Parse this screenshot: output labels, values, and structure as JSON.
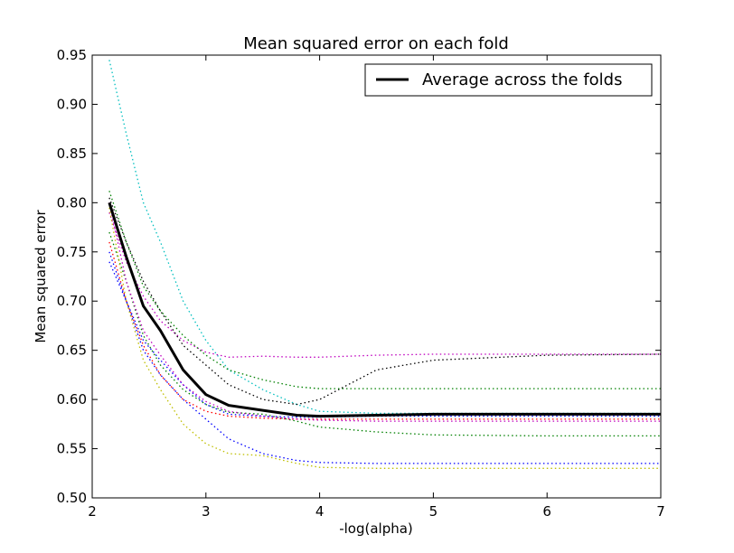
{
  "chart_data": {
    "type": "line",
    "title": "Mean squared error on each fold",
    "xlabel": "-log(alpha)",
    "ylabel": "Mean squared error",
    "xlim": [
      2,
      7
    ],
    "ylim": [
      0.5,
      0.95
    ],
    "x_ticks": [
      "2",
      "3",
      "4",
      "5",
      "6",
      "7"
    ],
    "y_ticks": [
      "0.50",
      "0.55",
      "0.60",
      "0.65",
      "0.70",
      "0.75",
      "0.80",
      "0.85",
      "0.90",
      "0.95"
    ],
    "grid": false,
    "legend": {
      "position": "top-right",
      "entries": [
        "Average across the folds"
      ]
    },
    "x": [
      2.15,
      2.3,
      2.45,
      2.6,
      2.8,
      3.0,
      3.2,
      3.5,
      3.8,
      4.0,
      4.5,
      5.0,
      6.0,
      7.0
    ],
    "series": [
      {
        "color": "#00bfbf",
        "style": "dotted",
        "values": [
          0.945,
          0.87,
          0.8,
          0.76,
          0.7,
          0.66,
          0.63,
          0.61,
          0.595,
          0.588,
          0.586,
          0.586,
          0.586,
          0.586
        ]
      },
      {
        "color": "#bf00bf",
        "style": "dotted",
        "values": [
          0.79,
          0.74,
          0.705,
          0.68,
          0.66,
          0.648,
          0.643,
          0.644,
          0.643,
          0.643,
          0.645,
          0.646,
          0.646,
          0.646
        ]
      },
      {
        "color": "#000000",
        "style": "dotted",
        "values": [
          0.805,
          0.76,
          0.72,
          0.69,
          0.655,
          0.635,
          0.615,
          0.6,
          0.595,
          0.6,
          0.63,
          0.64,
          0.645,
          0.646
        ]
      },
      {
        "color": "#008000",
        "style": "dotted",
        "values": [
          0.812,
          0.76,
          0.715,
          0.69,
          0.665,
          0.645,
          0.63,
          0.62,
          0.613,
          0.611,
          0.611,
          0.611,
          0.611,
          0.611
        ]
      },
      {
        "color": "#008000",
        "style": "dotted",
        "values": [
          0.77,
          0.72,
          0.665,
          0.635,
          0.61,
          0.595,
          0.587,
          0.585,
          0.578,
          0.572,
          0.567,
          0.564,
          0.563,
          0.563
        ]
      },
      {
        "color": "#ff0000",
        "style": "dotted",
        "values": [
          0.76,
          0.7,
          0.655,
          0.625,
          0.6,
          0.588,
          0.583,
          0.581,
          0.58,
          0.58,
          0.58,
          0.58,
          0.58,
          0.58
        ]
      },
      {
        "color": "#0000ff",
        "style": "dotted",
        "values": [
          0.74,
          0.7,
          0.65,
          0.625,
          0.6,
          0.58,
          0.56,
          0.545,
          0.538,
          0.536,
          0.535,
          0.535,
          0.535,
          0.535
        ]
      },
      {
        "color": "#bfbf00",
        "style": "dotted",
        "values": [
          0.795,
          0.7,
          0.64,
          0.61,
          0.575,
          0.555,
          0.545,
          0.543,
          0.535,
          0.531,
          0.53,
          0.53,
          0.53,
          0.53
        ]
      },
      {
        "color": "#0000ff",
        "style": "dotted",
        "values": [
          0.75,
          0.7,
          0.66,
          0.64,
          0.615,
          0.595,
          0.585,
          0.583,
          0.582,
          0.582,
          0.583,
          0.583,
          0.583,
          0.583
        ]
      },
      {
        "color": "#bf00bf",
        "style": "dotted",
        "values": [
          0.8,
          0.72,
          0.67,
          0.645,
          0.615,
          0.598,
          0.588,
          0.583,
          0.58,
          0.579,
          0.578,
          0.578,
          0.578,
          0.578
        ]
      },
      {
        "name": "Average across the folds",
        "color": "#000000",
        "style": "solid",
        "values": [
          0.8,
          0.745,
          0.695,
          0.67,
          0.63,
          0.605,
          0.594,
          0.589,
          0.584,
          0.583,
          0.584,
          0.585,
          0.585,
          0.585
        ]
      }
    ]
  }
}
